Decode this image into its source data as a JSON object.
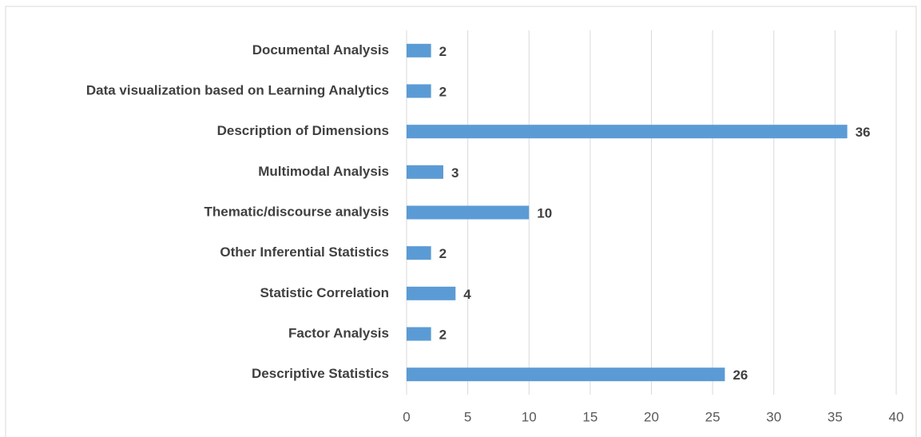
{
  "chart_data": {
    "type": "bar",
    "orientation": "horizontal",
    "categories": [
      "Documental Analysis",
      "Data visualization based on Learning Analytics",
      "Description of Dimensions",
      "Multimodal Analysis",
      "Thematic/discourse analysis",
      "Other Inferential Statistics",
      "Statistic Correlation",
      "Factor Analysis",
      "Descriptive Statistics"
    ],
    "values": [
      2,
      2,
      36,
      3,
      10,
      2,
      4,
      2,
      26
    ],
    "color": "#5b9bd5",
    "xlim": [
      0,
      40
    ],
    "xticks": [
      0,
      5,
      10,
      15,
      20,
      25,
      30,
      35,
      40
    ],
    "grid": true
  }
}
